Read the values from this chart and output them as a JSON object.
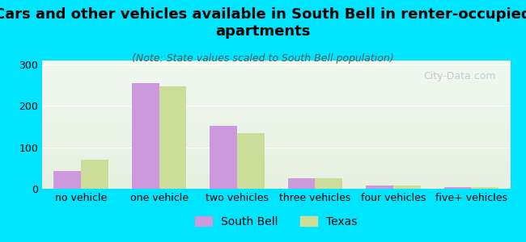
{
  "title": "Cars and other vehicles available in South Bell in renter-occupied\napartments",
  "subtitle": "(Note: State values scaled to South Bell population)",
  "categories": [
    "no vehicle",
    "one vehicle",
    "two vehicles",
    "three vehicles",
    "four vehicles",
    "five+ vehicles"
  ],
  "south_bell": [
    43,
    255,
    152,
    25,
    7,
    4
  ],
  "texas": [
    70,
    248,
    135,
    25,
    8,
    4
  ],
  "south_bell_color": "#cc99dd",
  "texas_color": "#ccdd99",
  "background_outer": "#00e5ff",
  "background_inner_top": "#f0f8f0",
  "background_inner_bottom": "#e8f0e0",
  "ylim": [
    0,
    310
  ],
  "yticks": [
    0,
    100,
    200,
    300
  ],
  "title_fontsize": 13,
  "subtitle_fontsize": 9,
  "tick_fontsize": 9,
  "legend_fontsize": 10,
  "watermark_text": "City-Data.com",
  "watermark_color": "#aabbcc"
}
